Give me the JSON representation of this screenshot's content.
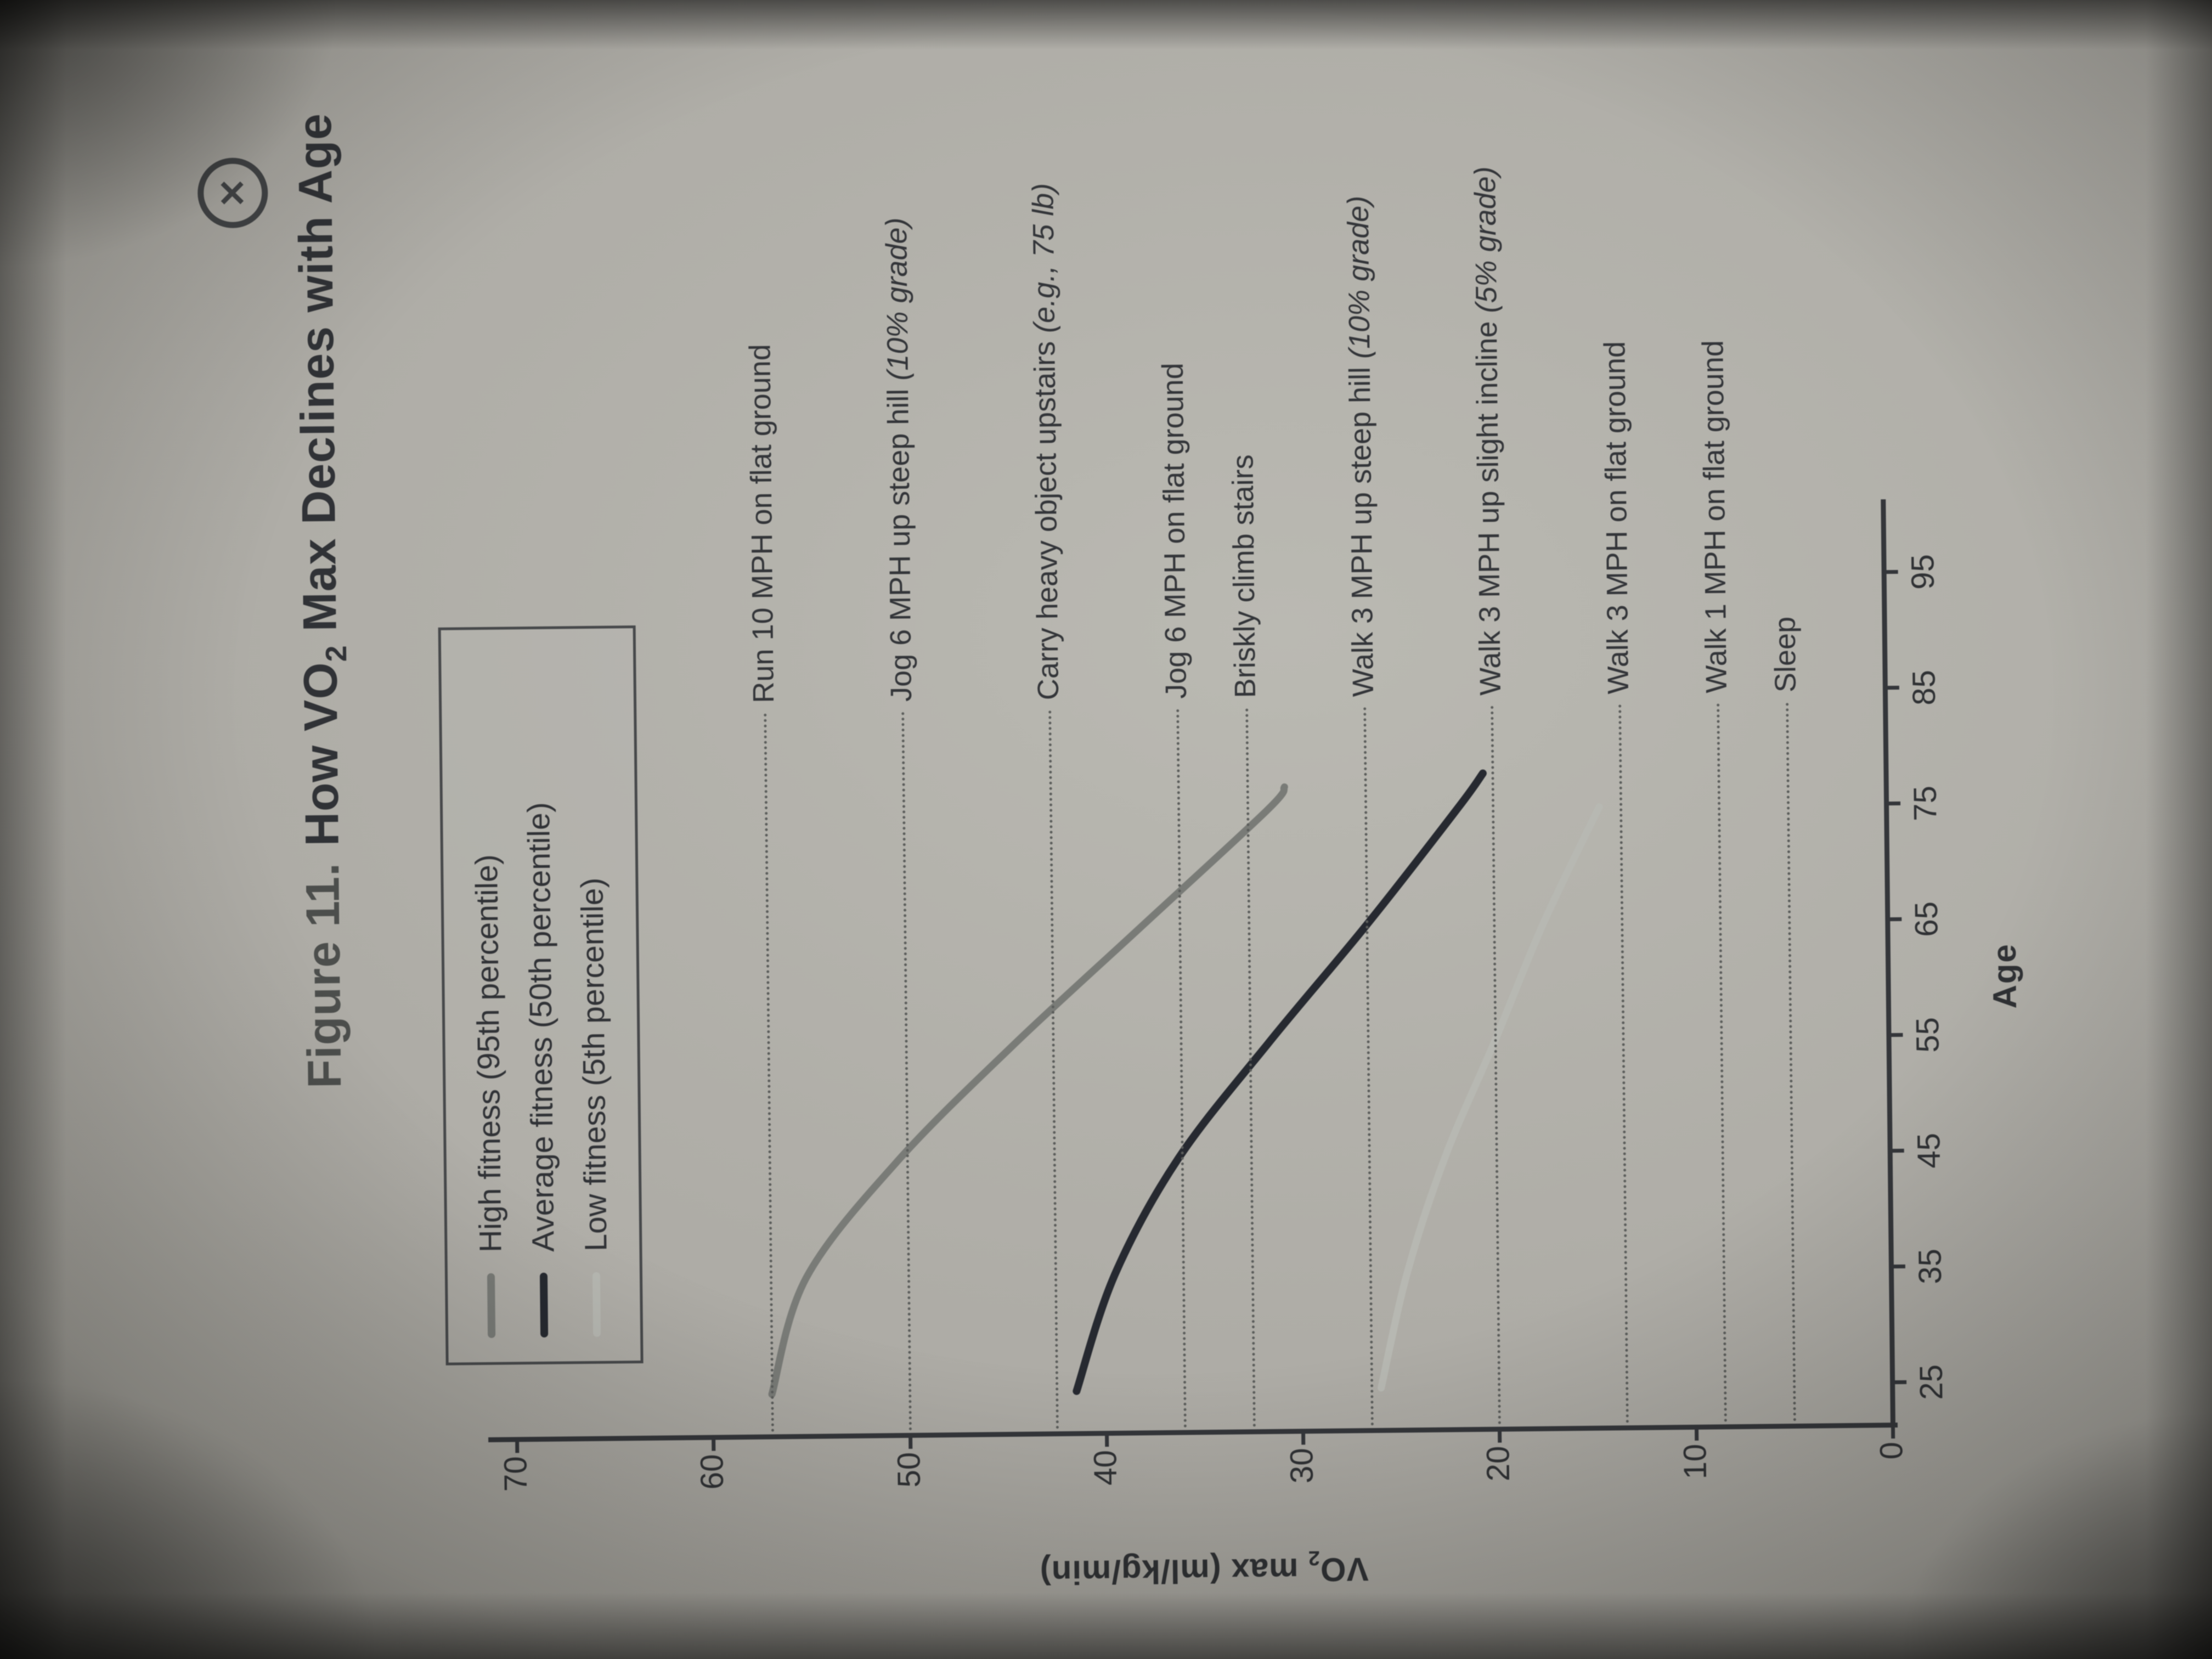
{
  "close": {
    "glyph": "✕"
  },
  "title": {
    "prefix": "Figure 11.",
    "main_pre": "How VO",
    "sub": "2",
    "main_post": " Max Declines with Age"
  },
  "y_axis": {
    "label_pre": "VO",
    "label_sub": "2",
    "label_post": " max (ml/kg/min)"
  },
  "x_axis": {
    "label": "Age"
  },
  "chart_data": {
    "type": "line",
    "title": "Figure 11. How VO2 Max Declines with Age",
    "xlabel": "Age",
    "ylabel": "VO2 max (ml/kg/min)",
    "xlim": [
      25,
      95
    ],
    "ylim": [
      0,
      70
    ],
    "x_ticks": [
      25,
      35,
      45,
      55,
      65,
      75,
      85,
      95
    ],
    "y_ticks": [
      70,
      60,
      50,
      40,
      30,
      20,
      10,
      0
    ],
    "grid": "none",
    "legend_position": "upper-left-box",
    "series": [
      {
        "name": "High fitness (95th percentile)",
        "color": "#797b77",
        "stroke_width": 13,
        "points": [
          [
            25,
            57
          ],
          [
            35,
            55.2
          ],
          [
            45,
            50.5
          ],
          [
            55,
            44.5
          ],
          [
            65,
            38
          ],
          [
            75,
            31.5
          ],
          [
            77,
            30.6
          ]
        ]
      },
      {
        "name": "Average fitness (50th percentile)",
        "color": "#262930",
        "stroke_width": 14,
        "points": [
          [
            25,
            41.5
          ],
          [
            35,
            39.5
          ],
          [
            45,
            36.2
          ],
          [
            55,
            31.5
          ],
          [
            65,
            26.5
          ],
          [
            75,
            21.8
          ],
          [
            78,
            20.5
          ]
        ]
      },
      {
        "name": "Low fitness (5th percentile)",
        "color": "#b7b8b2",
        "stroke_width": 13,
        "points": [
          [
            25,
            26
          ],
          [
            35,
            24.6
          ],
          [
            45,
            22.6
          ],
          [
            55,
            20
          ],
          [
            65,
            17.5
          ],
          [
            75,
            14.6
          ]
        ]
      }
    ],
    "reference_lines": [
      {
        "label": "Run 10 MPH on flat ground",
        "note": "",
        "vo2": 57
      },
      {
        "label": "Jog 6 MPH up steep hill ",
        "note": "(10% grade)",
        "vo2": 50
      },
      {
        "label": "Carry heavy object upstairs ",
        "note": "(e.g., 75 lb)",
        "vo2": 42.5
      },
      {
        "label": "Jog 6 MPH on flat ground",
        "note": "",
        "vo2": 36
      },
      {
        "label": "Briskly climb stairs",
        "note": "",
        "vo2": 32.5
      },
      {
        "label": "Walk 3 MPH up steep hill ",
        "note": "(10% grade)",
        "vo2": 26.5
      },
      {
        "label": "Walk 3 MPH up slight incline ",
        "note": "(5% grade)",
        "vo2": 20
      },
      {
        "label": "Walk 3 MPH on flat ground",
        "note": "",
        "vo2": 13.5
      },
      {
        "label": "Walk 1 MPH on flat ground",
        "note": "",
        "vo2": 8.5
      },
      {
        "label": "Sleep",
        "note": "",
        "vo2": 5
      }
    ]
  }
}
